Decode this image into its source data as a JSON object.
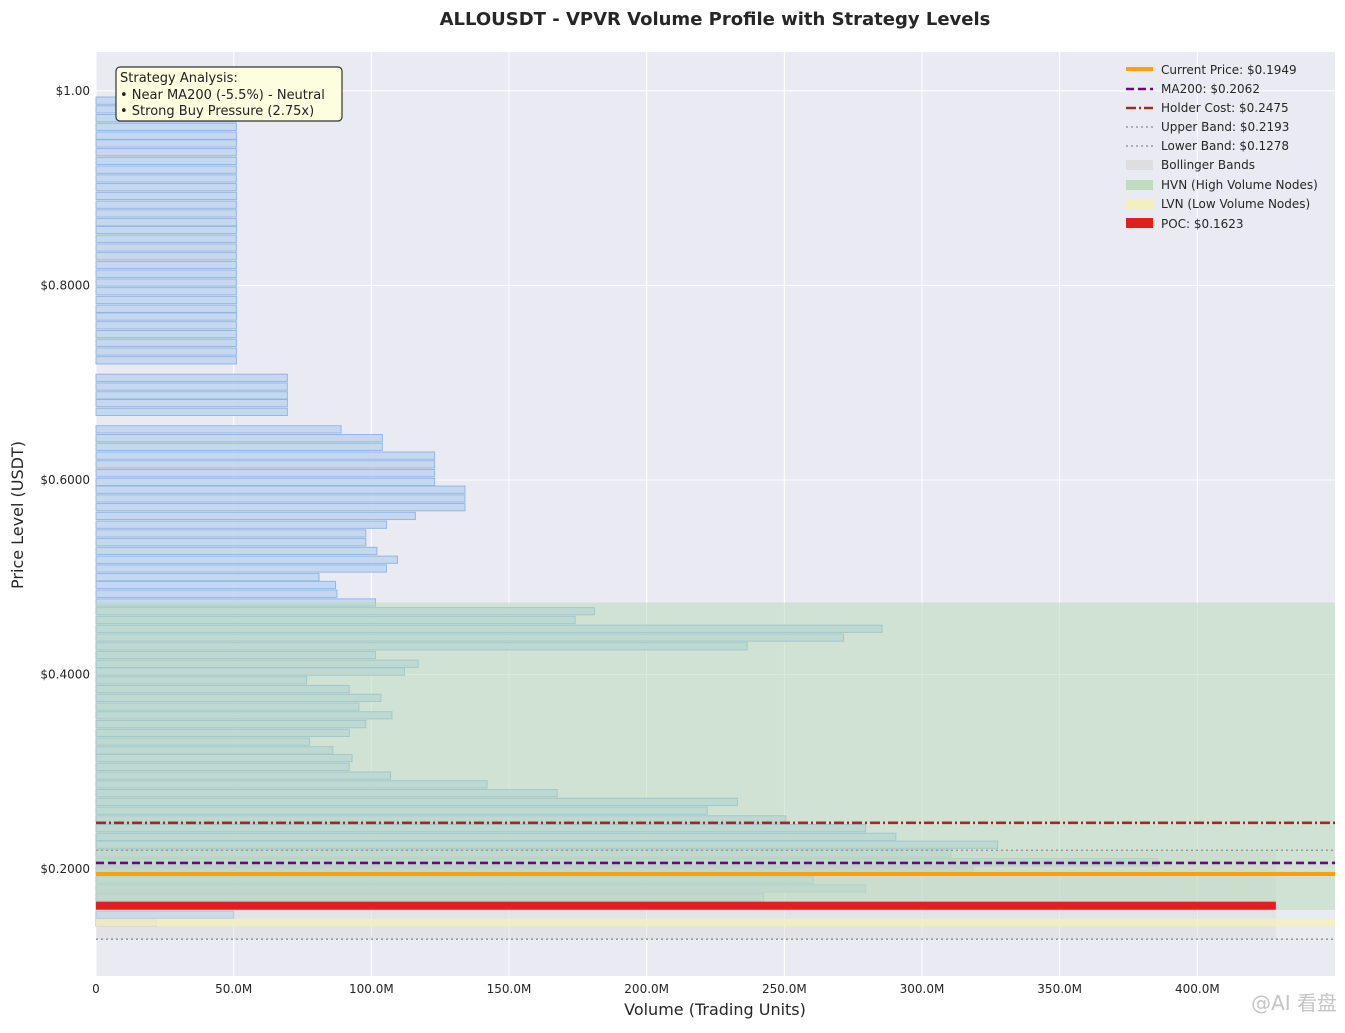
{
  "chart_data": {
    "type": "bar",
    "orientation": "horizontal",
    "title": "ALLOUSDT - VPVR Volume Profile with Strategy Levels",
    "xlabel": "Volume (Trading Units)",
    "ylabel": "Price Level (USDT)",
    "xlim": [
      0,
      450000000
    ],
    "ylim": [
      0.09,
      1.04
    ],
    "grid": true,
    "legend_position": "top-right",
    "x_ticks": [
      {
        "value": 0,
        "label": "0"
      },
      {
        "value": 50000000,
        "label": "50.0M"
      },
      {
        "value": 100000000,
        "label": "100.0M"
      },
      {
        "value": 150000000,
        "label": "150.0M"
      },
      {
        "value": 200000000,
        "label": "200.0M"
      },
      {
        "value": 250000000,
        "label": "250.0M"
      },
      {
        "value": 300000000,
        "label": "300.0M"
      },
      {
        "value": 350000000,
        "label": "350.0M"
      },
      {
        "value": 400000000,
        "label": "400.0M"
      }
    ],
    "y_ticks": [
      {
        "value": 1.0,
        "label": "$1.00"
      },
      {
        "value": 0.8,
        "label": "$0.8000"
      },
      {
        "value": 0.6,
        "label": "$0.6000"
      },
      {
        "value": 0.4,
        "label": "$0.4000"
      },
      {
        "value": 0.2,
        "label": "$0.2000"
      }
    ],
    "bin_size": 0.0087,
    "bars": [
      {
        "price": 0.99,
        "volume": 51000000
      },
      {
        "price": 0.981,
        "volume": 51000000
      },
      {
        "price": 0.972,
        "volume": 51000000
      },
      {
        "price": 0.963,
        "volume": 51000000
      },
      {
        "price": 0.954,
        "volume": 51000000
      },
      {
        "price": 0.946,
        "volume": 51000000
      },
      {
        "price": 0.937,
        "volume": 51000000
      },
      {
        "price": 0.928,
        "volume": 51000000
      },
      {
        "price": 0.919,
        "volume": 51000000
      },
      {
        "price": 0.91,
        "volume": 51000000
      },
      {
        "price": 0.901,
        "volume": 51000000
      },
      {
        "price": 0.892,
        "volume": 51000000
      },
      {
        "price": 0.883,
        "volume": 51000000
      },
      {
        "price": 0.874,
        "volume": 51000000
      },
      {
        "price": 0.865,
        "volume": 51000000
      },
      {
        "price": 0.857,
        "volume": 51000000
      },
      {
        "price": 0.848,
        "volume": 51000000
      },
      {
        "price": 0.839,
        "volume": 51000000
      },
      {
        "price": 0.83,
        "volume": 51000000
      },
      {
        "price": 0.821,
        "volume": 51000000
      },
      {
        "price": 0.812,
        "volume": 51000000
      },
      {
        "price": 0.803,
        "volume": 51000000
      },
      {
        "price": 0.794,
        "volume": 51000000
      },
      {
        "price": 0.785,
        "volume": 51000000
      },
      {
        "price": 0.776,
        "volume": 51000000
      },
      {
        "price": 0.768,
        "volume": 51000000
      },
      {
        "price": 0.759,
        "volume": 51000000
      },
      {
        "price": 0.75,
        "volume": 51000000
      },
      {
        "price": 0.741,
        "volume": 51000000
      },
      {
        "price": 0.732,
        "volume": 51000000
      },
      {
        "price": 0.723,
        "volume": 51000000
      },
      {
        "price": 0.705,
        "volume": 69500000
      },
      {
        "price": 0.696,
        "volume": 69500000
      },
      {
        "price": 0.687,
        "volume": 69500000
      },
      {
        "price": 0.679,
        "volume": 69500000
      },
      {
        "price": 0.67,
        "volume": 69500000
      },
      {
        "price": 0.652,
        "volume": 89000000
      },
      {
        "price": 0.643,
        "volume": 104000000
      },
      {
        "price": 0.634,
        "volume": 104000000
      },
      {
        "price": 0.625,
        "volume": 123000000
      },
      {
        "price": 0.616,
        "volume": 123000000
      },
      {
        "price": 0.607,
        "volume": 123000000
      },
      {
        "price": 0.598,
        "volume": 123000000
      },
      {
        "price": 0.59,
        "volume": 134000000
      },
      {
        "price": 0.581,
        "volume": 134000000
      },
      {
        "price": 0.572,
        "volume": 134000000
      },
      {
        "price": 0.563,
        "volume": 116000000
      },
      {
        "price": 0.554,
        "volume": 105500000
      },
      {
        "price": 0.545,
        "volume": 98000000
      },
      {
        "price": 0.536,
        "volume": 98000000
      },
      {
        "price": 0.527,
        "volume": 102000000
      },
      {
        "price": 0.518,
        "volume": 109500000
      },
      {
        "price": 0.509,
        "volume": 105500000
      },
      {
        "price": 0.5,
        "volume": 81000000
      },
      {
        "price": 0.492,
        "volume": 87000000
      },
      {
        "price": 0.483,
        "volume": 87500000
      },
      {
        "price": 0.474,
        "volume": 101500000
      },
      {
        "price": 0.465,
        "volume": 181000000
      },
      {
        "price": 0.456,
        "volume": 174000000
      },
      {
        "price": 0.447,
        "volume": 285500000
      },
      {
        "price": 0.438,
        "volume": 271500000
      },
      {
        "price": 0.429,
        "volume": 236500000
      },
      {
        "price": 0.42,
        "volume": 101500000
      },
      {
        "price": 0.411,
        "volume": 117000000
      },
      {
        "price": 0.403,
        "volume": 112000000
      },
      {
        "price": 0.394,
        "volume": 76500000
      },
      {
        "price": 0.385,
        "volume": 92000000
      },
      {
        "price": 0.376,
        "volume": 103500000
      },
      {
        "price": 0.367,
        "volume": 95500000
      },
      {
        "price": 0.358,
        "volume": 107500000
      },
      {
        "price": 0.349,
        "volume": 98000000
      },
      {
        "price": 0.34,
        "volume": 92000000
      },
      {
        "price": 0.331,
        "volume": 77500000
      },
      {
        "price": 0.322,
        "volume": 86000000
      },
      {
        "price": 0.314,
        "volume": 93000000
      },
      {
        "price": 0.305,
        "volume": 92000000
      },
      {
        "price": 0.296,
        "volume": 107000000
      },
      {
        "price": 0.287,
        "volume": 142000000
      },
      {
        "price": 0.278,
        "volume": 167500000
      },
      {
        "price": 0.269,
        "volume": 233000000
      },
      {
        "price": 0.26,
        "volume": 222000000
      },
      {
        "price": 0.251,
        "volume": 250500000
      },
      {
        "price": 0.242,
        "volume": 279500000
      },
      {
        "price": 0.233,
        "volume": 290500000
      },
      {
        "price": 0.225,
        "volume": 327500000
      },
      {
        "price": 0.216,
        "volume": 310500000
      },
      {
        "price": 0.207,
        "volume": 385500000
      },
      {
        "price": 0.198,
        "volume": 318500000
      },
      {
        "price": 0.189,
        "volume": 260500000
      },
      {
        "price": 0.18,
        "volume": 279500000
      },
      {
        "price": 0.171,
        "volume": 242500000
      },
      {
        "price": 0.162,
        "volume": 428500000
      },
      {
        "price": 0.153,
        "volume": 50000000
      },
      {
        "price": 0.145,
        "volume": 22000000
      }
    ],
    "levels": [
      {
        "name": "Current Price: $0.1949",
        "value": 0.1949,
        "color": "#ff9f0a",
        "style": "solid"
      },
      {
        "name": "MA200: $0.2062",
        "value": 0.2062,
        "color": "#6a0a7a",
        "style": "dashed"
      },
      {
        "name": "Holder Cost: $0.2475",
        "value": 0.2475,
        "color": "#a02a2a",
        "style": "dashdot"
      },
      {
        "name": "Upper Band: $0.2193",
        "value": 0.2193,
        "color": "#999999",
        "style": "dotted"
      },
      {
        "name": "Lower Band: $0.1278",
        "value": 0.1278,
        "color": "#999999",
        "style": "dotted"
      }
    ],
    "bollinger_band": {
      "name": "Bollinger Bands",
      "low": 0.1278,
      "high": 0.2193,
      "color": "#d9d9d9"
    },
    "hvn_zone": {
      "name": "HVN (High Volume Nodes)",
      "low": 0.158,
      "high": 0.474,
      "color": "#b3d9b3"
    },
    "lvn_zone": {
      "name": "LVN (Low Volume Nodes)",
      "low": 0.141,
      "high": 0.149,
      "color": "#f5f0b8"
    },
    "poc": {
      "name": "POC: $0.1623",
      "value": 0.1623,
      "volume": 428500000,
      "color": "#e02020"
    },
    "annotation": {
      "lines": [
        "Strategy Analysis:",
        "• Near MA200 (-5.5%) - Neutral",
        "• Strong Buy Pressure (2.75x)"
      ]
    }
  },
  "colors": {
    "plot_background": "#eaeaf2",
    "bar_fill": "#c5d8f0",
    "bar_edge": "#8fb4e3",
    "grid": "#ffffff"
  },
  "watermark": "@AI 看盘"
}
